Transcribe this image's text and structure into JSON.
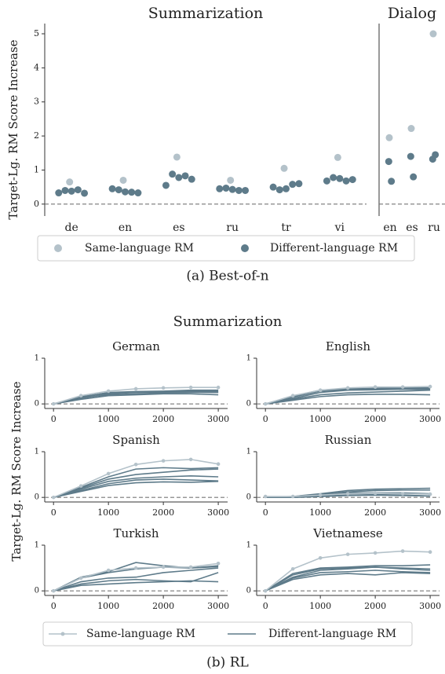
{
  "figure": {
    "ylabel_a": "Target-Lg. RM Score Increase",
    "ylabel_b": "Target-Lg. RM Score Increase",
    "caption_a": "(a) Best-of-n",
    "caption_b": "(b) RL",
    "section_b": "Summarization",
    "legend_a": [
      {
        "name": "Same-language RM",
        "color": "#b4c2ca"
      },
      {
        "name": "Different-language RM",
        "color": "#5e7b8a"
      }
    ],
    "legend_b": [
      {
        "name": "Same-language RM",
        "color": "#b4c2ca"
      },
      {
        "name": "Different-language RM",
        "color": "#5e7b8a"
      }
    ]
  },
  "chart_data": [
    {
      "type": "scatter",
      "title": "Summarization",
      "categories": [
        "de",
        "en",
        "es",
        "ru",
        "tr",
        "vi"
      ],
      "same": [
        0.65,
        0.7,
        1.38,
        0.7,
        1.05,
        1.37
      ],
      "different": [
        [
          0.33,
          0.4,
          0.38,
          0.42,
          0.32
        ],
        [
          0.45,
          0.42,
          0.36,
          0.35,
          0.33
        ],
        [
          0.55,
          0.88,
          0.78,
          0.83,
          0.73
        ],
        [
          0.45,
          0.47,
          0.43,
          0.4,
          0.4
        ],
        [
          0.5,
          0.42,
          0.45,
          0.58,
          0.6
        ],
        [
          0.68,
          0.78,
          0.75,
          0.68,
          0.72
        ]
      ],
      "ylim": [
        -0.35,
        5.3
      ],
      "yticks": [
        0,
        1,
        2,
        3,
        4,
        5
      ],
      "hline": 0
    },
    {
      "type": "scatter",
      "title": "Dialog",
      "categories": [
        "en",
        "es",
        "ru"
      ],
      "same": [
        1.95,
        2.22,
        5.0
      ],
      "different": [
        [
          1.25,
          0.67
        ],
        [
          1.4,
          0.8
        ],
        [
          1.32,
          1.45
        ]
      ],
      "ylim": [
        -0.35,
        5.3
      ],
      "yticks": [],
      "hline": 0
    },
    {
      "type": "line",
      "title": "German",
      "x": [
        0,
        500,
        1000,
        1500,
        2000,
        2500,
        3000
      ],
      "same": [
        0,
        0.18,
        0.28,
        0.33,
        0.35,
        0.36,
        0.36
      ],
      "different": [
        [
          0,
          0.15,
          0.25,
          0.27,
          0.28,
          0.3,
          0.3
        ],
        [
          0,
          0.12,
          0.22,
          0.25,
          0.26,
          0.28,
          0.28
        ],
        [
          0,
          0.14,
          0.2,
          0.22,
          0.24,
          0.25,
          0.25
        ],
        [
          0,
          0.1,
          0.18,
          0.2,
          0.22,
          0.22,
          0.2
        ],
        [
          0,
          0.16,
          0.24,
          0.26,
          0.27,
          0.26,
          0.26
        ]
      ],
      "xlim": [
        -160,
        3170
      ],
      "xticks": [
        0,
        1000,
        2000,
        3000
      ],
      "ylim": [
        -0.1,
        1.0
      ],
      "yticks": [
        0,
        1
      ],
      "hline": 0
    },
    {
      "type": "line",
      "title": "English",
      "x": [
        0,
        500,
        1000,
        1500,
        2000,
        2500,
        3000
      ],
      "same": [
        0,
        0.18,
        0.3,
        0.35,
        0.37,
        0.37,
        0.38
      ],
      "different": [
        [
          0,
          0.17,
          0.3,
          0.33,
          0.34,
          0.35,
          0.35
        ],
        [
          0,
          0.15,
          0.28,
          0.31,
          0.33,
          0.33,
          0.34
        ],
        [
          0,
          0.12,
          0.25,
          0.3,
          0.31,
          0.32,
          0.32
        ],
        [
          0,
          0.1,
          0.2,
          0.24,
          0.26,
          0.28,
          0.3
        ],
        [
          0,
          0.08,
          0.16,
          0.2,
          0.21,
          0.21,
          0.2
        ]
      ],
      "xlim": [
        -160,
        3170
      ],
      "xticks": [
        0,
        1000,
        2000,
        3000
      ],
      "ylim": [
        -0.1,
        1.0
      ],
      "yticks": [
        0,
        1
      ],
      "hline": 0
    },
    {
      "type": "line",
      "title": "Spanish",
      "x": [
        0,
        500,
        1000,
        1500,
        2000,
        2500,
        3000
      ],
      "same": [
        0,
        0.25,
        0.52,
        0.72,
        0.8,
        0.83,
        0.73
      ],
      "different": [
        [
          0,
          0.22,
          0.45,
          0.62,
          0.65,
          0.63,
          0.65
        ],
        [
          0,
          0.2,
          0.4,
          0.5,
          0.55,
          0.6,
          0.62
        ],
        [
          0,
          0.18,
          0.35,
          0.42,
          0.45,
          0.47,
          0.45
        ],
        [
          0,
          0.15,
          0.3,
          0.38,
          0.4,
          0.38,
          0.36
        ],
        [
          0,
          0.13,
          0.26,
          0.32,
          0.34,
          0.33,
          0.35
        ]
      ],
      "xlim": [
        -160,
        3170
      ],
      "xticks": [
        0,
        1000,
        2000,
        3000
      ],
      "ylim": [
        -0.1,
        1.0
      ],
      "yticks": [
        0,
        1
      ],
      "hline": 0
    },
    {
      "type": "line",
      "title": "Russian",
      "x": [
        0,
        500,
        1000,
        1500,
        2000,
        2500,
        3000
      ],
      "same": [
        0.02,
        0.02,
        0.05,
        0.08,
        0.09,
        0.08,
        0.07
      ],
      "different": [
        [
          0,
          0.02,
          0.08,
          0.15,
          0.18,
          0.19,
          0.2
        ],
        [
          0,
          0.01,
          0.06,
          0.12,
          0.15,
          0.16,
          0.16
        ],
        [
          0,
          0.0,
          0.05,
          0.1,
          0.1,
          0.1,
          0.08
        ],
        [
          0,
          0.0,
          0.03,
          0.05,
          0.06,
          0.05,
          0.03
        ],
        [
          0,
          0.0,
          0.02,
          0.04,
          0.05,
          0.04,
          0.03
        ]
      ],
      "xlim": [
        -160,
        3170
      ],
      "xticks": [
        0,
        1000,
        2000,
        3000
      ],
      "ylim": [
        -0.1,
        1.0
      ],
      "yticks": [
        0,
        1
      ],
      "hline": 0
    },
    {
      "type": "line",
      "title": "Turkish",
      "x": [
        0,
        500,
        1000,
        1500,
        2000,
        2500,
        3000
      ],
      "same": [
        0,
        0.28,
        0.45,
        0.5,
        0.52,
        0.52,
        0.6
      ],
      "different": [
        [
          0,
          0.3,
          0.42,
          0.62,
          0.55,
          0.5,
          0.55
        ],
        [
          0,
          0.28,
          0.4,
          0.48,
          0.52,
          0.5,
          0.53
        ],
        [
          0,
          0.2,
          0.28,
          0.3,
          0.4,
          0.45,
          0.5
        ],
        [
          0,
          0.15,
          0.22,
          0.25,
          0.22,
          0.2,
          0.4
        ],
        [
          0,
          0.12,
          0.15,
          0.18,
          0.2,
          0.22,
          0.2
        ]
      ],
      "xlim": [
        -160,
        3170
      ],
      "xticks": [
        0,
        1000,
        2000,
        3000
      ],
      "ylim": [
        -0.1,
        1.0
      ],
      "yticks": [
        0,
        1
      ],
      "hline": 0
    },
    {
      "type": "line",
      "title": "Vietnamese",
      "x": [
        0,
        500,
        1000,
        1500,
        2000,
        2500,
        3000
      ],
      "same": [
        0,
        0.48,
        0.72,
        0.8,
        0.83,
        0.87,
        0.85
      ],
      "different": [
        [
          0,
          0.38,
          0.5,
          0.52,
          0.55,
          0.55,
          0.57
        ],
        [
          0,
          0.35,
          0.48,
          0.5,
          0.52,
          0.5,
          0.48
        ],
        [
          0,
          0.3,
          0.45,
          0.48,
          0.52,
          0.48,
          0.45
        ],
        [
          0,
          0.28,
          0.4,
          0.42,
          0.45,
          0.42,
          0.4
        ],
        [
          0,
          0.25,
          0.35,
          0.38,
          0.35,
          0.4,
          0.38
        ]
      ],
      "xlim": [
        -160,
        3170
      ],
      "xticks": [
        0,
        1000,
        2000,
        3000
      ],
      "ylim": [
        -0.1,
        1.0
      ],
      "yticks": [
        0,
        1
      ],
      "hline": 0
    }
  ]
}
